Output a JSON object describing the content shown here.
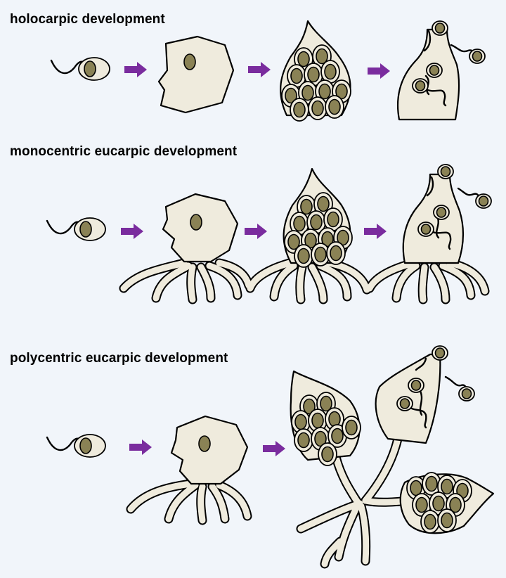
{
  "sections": [
    {
      "key": "holocarpic",
      "title": "holocarpic development"
    },
    {
      "key": "monocentric",
      "title": "monocentric eucarpic development"
    },
    {
      "key": "polycentric",
      "title": "polycentric eucarpic development"
    }
  ],
  "colors": {
    "background": "#f1f5fa",
    "cell_fill": "#efebdd",
    "nucleus_fill": "#8a8255",
    "arrow": "#7a2c9e",
    "outline": "#000000"
  }
}
